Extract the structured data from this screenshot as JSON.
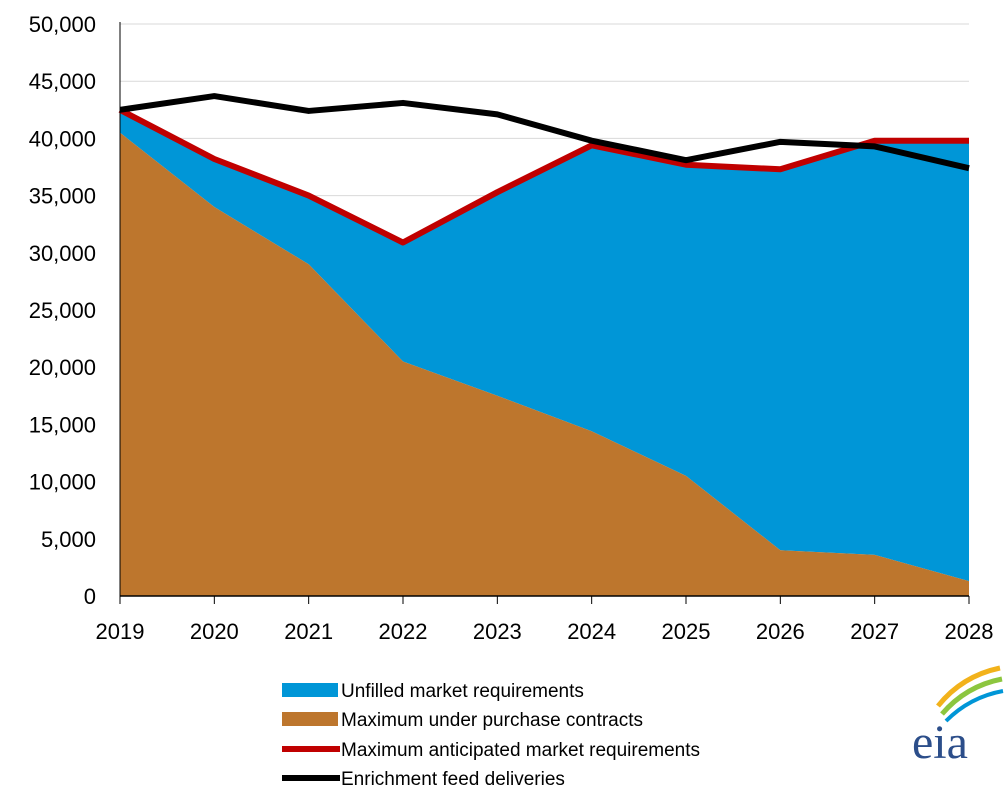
{
  "chart_data": {
    "type": "area",
    "title": "",
    "xlabel": "",
    "ylabel": "",
    "x": [
      "2019",
      "2020",
      "2021",
      "2022",
      "2023",
      "2024",
      "2025",
      "2026",
      "2027",
      "2028"
    ],
    "ylim": [
      0,
      50000
    ],
    "yticks": [
      0,
      5000,
      10000,
      15000,
      20000,
      25000,
      30000,
      35000,
      40000,
      45000,
      50000
    ],
    "ytick_labels": [
      "0",
      "5,000",
      "10,000",
      "15,000",
      "20,000",
      "25,000",
      "30,000",
      "35,000",
      "40,000",
      "45,000",
      "50,000"
    ],
    "grid": true,
    "legend_position": "bottom",
    "series": [
      {
        "name": "Maximum under purchase contracts",
        "kind": "area",
        "color": "#bd762d",
        "values": [
          40500,
          34000,
          29000,
          20500,
          17500,
          14400,
          10500,
          4000,
          3600,
          1300
        ]
      },
      {
        "name": "Unfilled market requirements",
        "kind": "area-stacked",
        "color": "#0096d7",
        "values": [
          2000,
          4200,
          6000,
          10400,
          17800,
          25000,
          27200,
          33300,
          36200,
          38500
        ]
      },
      {
        "name": "Maximum anticipated market requirements",
        "kind": "line",
        "color": "#c00000",
        "values": [
          42500,
          38200,
          35000,
          30900,
          35300,
          39400,
          37700,
          37300,
          39800,
          39800
        ]
      },
      {
        "name": "Enrichment feed deliveries",
        "kind": "line",
        "color": "#000000",
        "values": [
          42500,
          43700,
          42400,
          43100,
          42100,
          39800,
          38100,
          39700,
          39300,
          37400
        ]
      }
    ],
    "legend": [
      {
        "label": "Unfilled market requirements",
        "swatch": "box",
        "color": "#0096d7"
      },
      {
        "label": "Maximum under purchase contracts",
        "swatch": "box",
        "color": "#bd762d"
      },
      {
        "label": "Maximum anticipated market requirements",
        "swatch": "line",
        "color": "#c00000"
      },
      {
        "label": "Enrichment feed deliveries",
        "swatch": "line",
        "color": "#000000"
      }
    ]
  },
  "logo": {
    "name": "eia-logo",
    "text": "eia",
    "colors": [
      "#f2b21b",
      "#8cc63f",
      "#0096d7",
      "#2c4e8a"
    ]
  }
}
